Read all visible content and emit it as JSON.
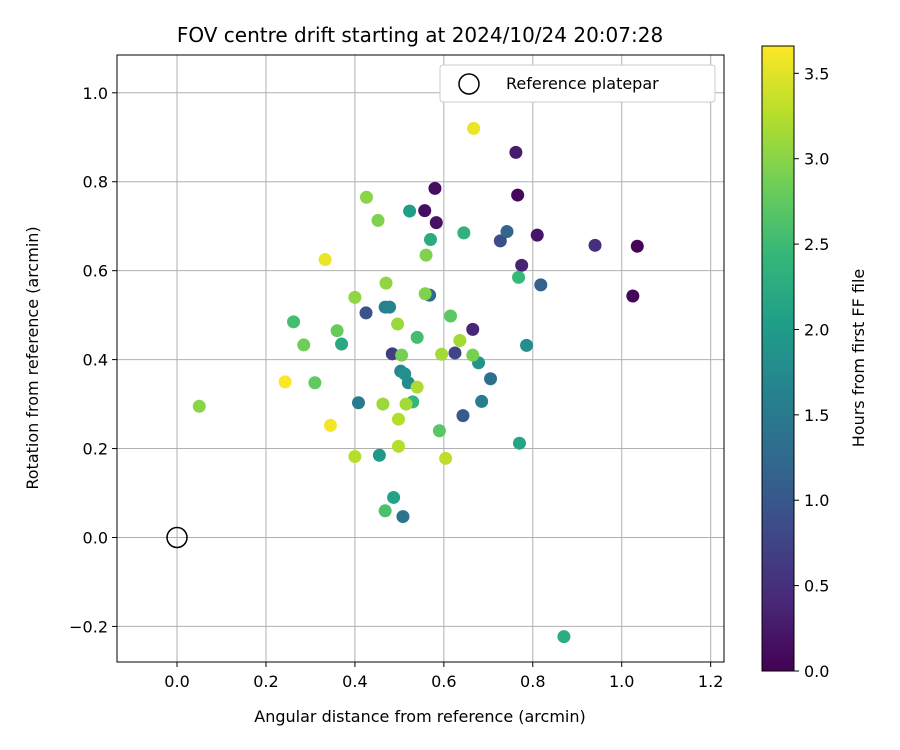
{
  "chart_data": {
    "type": "scatter",
    "title": "FOV centre drift starting at 2024/10/24 20:07:28",
    "xlabel": "Angular distance from reference (arcmin)",
    "ylabel": "Rotation from reference (arcmin)",
    "xlim": [
      -0.135,
      1.23
    ],
    "ylim": [
      -0.28,
      1.085
    ],
    "xticks": [
      "0.0",
      "0.2",
      "0.4",
      "0.6",
      "0.8",
      "1.0",
      "1.2"
    ],
    "xtick_values": [
      0.0,
      0.2,
      0.4,
      0.6,
      0.8,
      1.0,
      1.2
    ],
    "yticks": [
      "−0.2",
      "0.0",
      "0.2",
      "0.4",
      "0.6",
      "0.8",
      "1.0"
    ],
    "ytick_values": [
      -0.2,
      0.0,
      0.2,
      0.4,
      0.6,
      0.8,
      1.0
    ],
    "grid": true,
    "legend": {
      "placement": "top-right",
      "entries": [
        {
          "label": "Reference platepar",
          "marker": "open-circle"
        }
      ]
    },
    "reference_point": {
      "x": 0.0,
      "y": 0.0
    },
    "colorbar": {
      "label": "Hours from first FF file",
      "range": [
        0.0,
        3.66
      ],
      "ticks": [
        "0.0",
        "0.5",
        "1.0",
        "1.5",
        "2.0",
        "2.5",
        "3.0",
        "3.5"
      ],
      "tick_values": [
        0.0,
        0.5,
        1.0,
        1.5,
        2.0,
        2.5,
        3.0,
        3.5
      ],
      "colormap": "viridis",
      "colormap_stops": [
        "#440154",
        "#482878",
        "#3e4989",
        "#31688e",
        "#26828e",
        "#1f9e89",
        "#35b779",
        "#6ece58",
        "#b5de2b",
        "#fde725"
      ]
    },
    "points": [
      {
        "x": 1.035,
        "y": 0.655,
        "c": 0.03
      },
      {
        "x": 1.025,
        "y": 0.543,
        "c": 0.05
      },
      {
        "x": 0.766,
        "y": 0.77,
        "c": 0.08
      },
      {
        "x": 0.58,
        "y": 0.785,
        "c": 0.12
      },
      {
        "x": 0.557,
        "y": 0.735,
        "c": 0.15
      },
      {
        "x": 0.583,
        "y": 0.708,
        "c": 0.18
      },
      {
        "x": 0.81,
        "y": 0.68,
        "c": 0.22
      },
      {
        "x": 0.762,
        "y": 0.866,
        "c": 0.28
      },
      {
        "x": 0.775,
        "y": 0.612,
        "c": 0.35
      },
      {
        "x": 0.665,
        "y": 0.468,
        "c": 0.4
      },
      {
        "x": 0.94,
        "y": 0.657,
        "c": 0.5
      },
      {
        "x": 0.484,
        "y": 0.413,
        "c": 0.65
      },
      {
        "x": 0.625,
        "y": 0.415,
        "c": 0.75
      },
      {
        "x": 0.727,
        "y": 0.667,
        "c": 0.9
      },
      {
        "x": 0.425,
        "y": 0.505,
        "c": 0.95
      },
      {
        "x": 0.643,
        "y": 0.274,
        "c": 1.05
      },
      {
        "x": 0.818,
        "y": 0.568,
        "c": 1.15
      },
      {
        "x": 0.742,
        "y": 0.688,
        "c": 1.2
      },
      {
        "x": 0.568,
        "y": 0.545,
        "c": 1.25
      },
      {
        "x": 0.705,
        "y": 0.357,
        "c": 1.35
      },
      {
        "x": 0.508,
        "y": 0.047,
        "c": 1.4
      },
      {
        "x": 0.408,
        "y": 0.303,
        "c": 1.5
      },
      {
        "x": 0.685,
        "y": 0.306,
        "c": 1.55
      },
      {
        "x": 0.468,
        "y": 0.518,
        "c": 1.6
      },
      {
        "x": 0.478,
        "y": 0.518,
        "c": 1.65
      },
      {
        "x": 0.503,
        "y": 0.374,
        "c": 1.7
      },
      {
        "x": 0.52,
        "y": 0.348,
        "c": 1.75
      },
      {
        "x": 0.786,
        "y": 0.432,
        "c": 1.8
      },
      {
        "x": 0.512,
        "y": 0.368,
        "c": 1.85
      },
      {
        "x": 0.678,
        "y": 0.393,
        "c": 1.9
      },
      {
        "x": 0.455,
        "y": 0.185,
        "c": 1.95
      },
      {
        "x": 0.523,
        "y": 0.734,
        "c": 2.05
      },
      {
        "x": 0.487,
        "y": 0.09,
        "c": 2.1
      },
      {
        "x": 0.77,
        "y": 0.212,
        "c": 2.15
      },
      {
        "x": 0.37,
        "y": 0.435,
        "c": 2.2
      },
      {
        "x": 0.57,
        "y": 0.67,
        "c": 2.25
      },
      {
        "x": 0.87,
        "y": -0.223,
        "c": 2.3
      },
      {
        "x": 0.645,
        "y": 0.685,
        "c": 2.35
      },
      {
        "x": 0.53,
        "y": 0.305,
        "c": 2.4
      },
      {
        "x": 0.768,
        "y": 0.585,
        "c": 2.45
      },
      {
        "x": 0.262,
        "y": 0.485,
        "c": 2.55
      },
      {
        "x": 0.54,
        "y": 0.45,
        "c": 2.55
      },
      {
        "x": 0.468,
        "y": 0.06,
        "c": 2.6
      },
      {
        "x": 0.59,
        "y": 0.24,
        "c": 2.7
      },
      {
        "x": 0.615,
        "y": 0.498,
        "c": 2.72
      },
      {
        "x": 0.31,
        "y": 0.348,
        "c": 2.75
      },
      {
        "x": 0.36,
        "y": 0.465,
        "c": 2.8
      },
      {
        "x": 0.285,
        "y": 0.433,
        "c": 2.85
      },
      {
        "x": 0.505,
        "y": 0.41,
        "c": 2.88
      },
      {
        "x": 0.665,
        "y": 0.41,
        "c": 2.9
      },
      {
        "x": 0.452,
        "y": 0.713,
        "c": 2.95
      },
      {
        "x": 0.56,
        "y": 0.635,
        "c": 2.95
      },
      {
        "x": 0.558,
        "y": 0.548,
        "c": 2.95
      },
      {
        "x": 0.05,
        "y": 0.295,
        "c": 3.0
      },
      {
        "x": 0.426,
        "y": 0.765,
        "c": 3.0
      },
      {
        "x": 0.4,
        "y": 0.54,
        "c": 3.05
      },
      {
        "x": 0.47,
        "y": 0.572,
        "c": 3.05
      },
      {
        "x": 0.496,
        "y": 0.48,
        "c": 3.1
      },
      {
        "x": 0.463,
        "y": 0.3,
        "c": 3.1
      },
      {
        "x": 0.636,
        "y": 0.443,
        "c": 3.15
      },
      {
        "x": 0.515,
        "y": 0.3,
        "c": 3.15
      },
      {
        "x": 0.595,
        "y": 0.412,
        "c": 3.15
      },
      {
        "x": 0.54,
        "y": 0.338,
        "c": 3.2
      },
      {
        "x": 0.498,
        "y": 0.266,
        "c": 3.25
      },
      {
        "x": 0.498,
        "y": 0.205,
        "c": 3.25
      },
      {
        "x": 0.4,
        "y": 0.182,
        "c": 3.25
      },
      {
        "x": 0.604,
        "y": 0.178,
        "c": 3.3
      },
      {
        "x": 0.333,
        "y": 0.625,
        "c": 3.55
      },
      {
        "x": 0.345,
        "y": 0.252,
        "c": 3.6
      },
      {
        "x": 0.667,
        "y": 0.92,
        "c": 3.55
      },
      {
        "x": 0.243,
        "y": 0.35,
        "c": 3.65
      }
    ]
  }
}
